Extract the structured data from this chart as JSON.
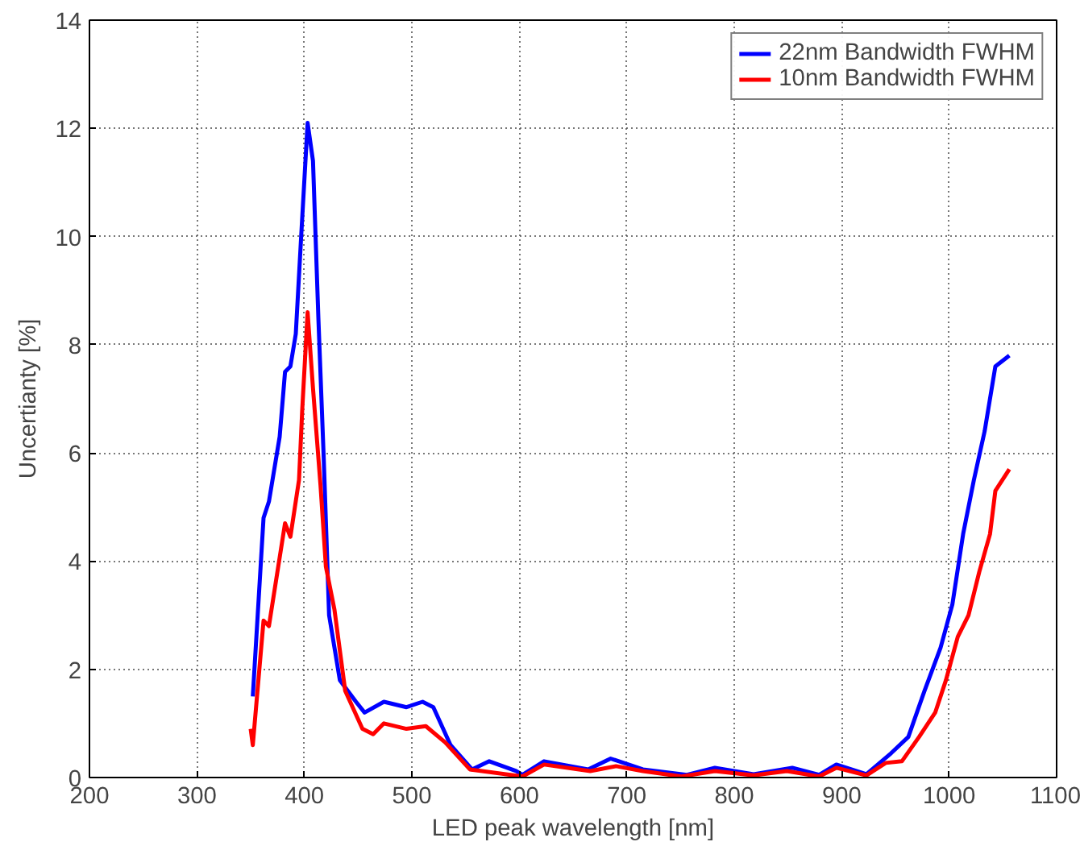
{
  "chart_data": {
    "type": "line",
    "xlabel": "LED peak wavelength [nm]",
    "ylabel": "Uncertianty [%]",
    "xlim": [
      200,
      1100
    ],
    "ylim": [
      0,
      14
    ],
    "xticks": [
      200,
      300,
      400,
      500,
      600,
      700,
      800,
      900,
      1000,
      1100
    ],
    "yticks": [
      0,
      2,
      4,
      6,
      8,
      10,
      12,
      14
    ],
    "grid": true,
    "legend": "top right",
    "line_style": "solid",
    "series": [
      {
        "name": "22nm Bandwidth FWHM",
        "color": "#0000ff",
        "x": [
          352,
          362,
          367,
          377,
          382,
          387,
          392,
          397,
          403,
          408,
          413,
          418,
          423,
          433,
          448,
          456,
          474,
          495,
          510,
          520,
          536,
          556,
          572,
          597,
          603,
          623,
          664,
          685,
          715,
          756,
          782,
          818,
          854,
          879,
          895,
          923,
          946,
          962,
          977,
          992,
          1003,
          1013,
          1023,
          1033,
          1043,
          1056
        ],
        "values": [
          1.5,
          4.8,
          5.1,
          6.3,
          7.5,
          7.6,
          8.2,
          10,
          12.1,
          11.4,
          8.5,
          5.9,
          3.0,
          1.8,
          1.4,
          1.2,
          1.4,
          1.3,
          1.4,
          1.3,
          0.6,
          0.15,
          0.3,
          0.12,
          0.05,
          0.3,
          0.15,
          0.35,
          0.15,
          0.05,
          0.18,
          0.06,
          0.18,
          0.05,
          0.24,
          0.06,
          0.45,
          0.75,
          1.6,
          2.4,
          3.2,
          4.5,
          5.5,
          6.4,
          7.6,
          7.8
        ]
      },
      {
        "name": "10nm Bandwidth FWHM",
        "color": "#ff0000",
        "x": [
          350,
          352,
          362,
          367,
          382,
          387,
          395,
          398,
          403,
          408,
          415,
          420,
          428,
          438,
          454,
          464,
          474,
          495,
          513,
          531,
          554,
          603,
          623,
          666,
          690,
          715,
          751,
          782,
          818,
          849,
          879,
          895,
          923,
          941,
          956,
          972,
          987,
          997,
          1008,
          1018,
          1028,
          1038,
          1043,
          1056
        ],
        "values": [
          0.9,
          0.6,
          2.9,
          2.8,
          4.7,
          4.45,
          5.5,
          6.8,
          8.6,
          7.2,
          5.4,
          3.9,
          3.1,
          1.6,
          0.9,
          0.8,
          1.0,
          0.9,
          0.95,
          0.65,
          0.15,
          0.02,
          0.24,
          0.12,
          0.21,
          0.12,
          0.02,
          0.12,
          0.04,
          0.12,
          0.02,
          0.18,
          0.04,
          0.27,
          0.3,
          0.75,
          1.2,
          1.8,
          2.6,
          3.0,
          3.8,
          4.5,
          5.3,
          5.7
        ]
      }
    ]
  }
}
